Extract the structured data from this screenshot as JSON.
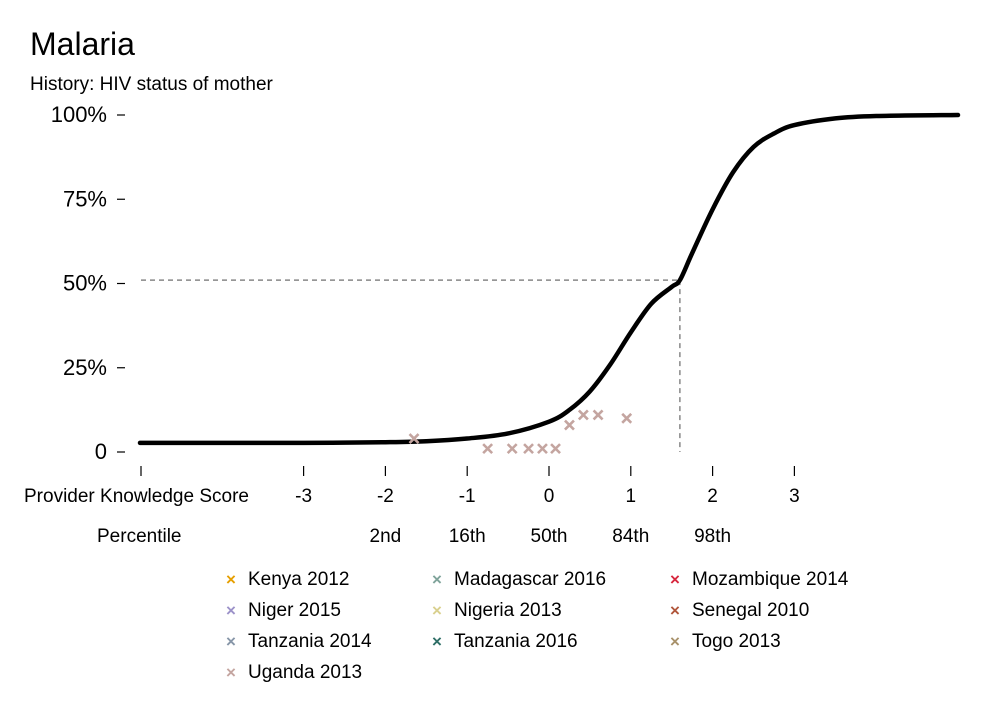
{
  "title": "Malaria",
  "subtitle": "History: HIV status of mother",
  "chart_data": {
    "type": "line",
    "title": "Malaria",
    "subtitle": "History: HIV status of mother",
    "xlabel": "Provider Knowledge Score",
    "x_tick_labels": [
      "-3",
      "-2",
      "-1",
      "0",
      "1",
      "2",
      "3"
    ],
    "x_ticks": [
      -3,
      -2,
      -1,
      0,
      1,
      2,
      3
    ],
    "xlim": [
      -5,
      5
    ],
    "percentile_label": "Percentile",
    "percentiles": [
      {
        "x": -2,
        "label": "2nd"
      },
      {
        "x": -1,
        "label": "16th"
      },
      {
        "x": 0,
        "label": "50th"
      },
      {
        "x": 1,
        "label": "84th"
      },
      {
        "x": 2,
        "label": "98th"
      }
    ],
    "y_ticks": [
      0,
      25,
      50,
      75,
      100
    ],
    "y_tick_labels": [
      "0",
      "25%",
      "50%",
      "75%",
      "100%"
    ],
    "ylim": [
      0,
      100
    ],
    "curve": {
      "x": [
        -5,
        -4,
        -3,
        -2.5,
        -2,
        -1.5,
        -1,
        -0.5,
        0,
        0.25,
        0.5,
        0.75,
        1,
        1.25,
        1.5,
        1.6,
        1.75,
        2,
        2.25,
        2.5,
        2.75,
        3,
        3.5,
        4,
        5
      ],
      "y": [
        2.7,
        2.7,
        2.7,
        2.8,
        2.9,
        3.2,
        4.0,
        5.5,
        9.0,
        12.5,
        18.0,
        26.0,
        35.5,
        44.0,
        49.0,
        51.0,
        59.0,
        72.0,
        83.0,
        90.5,
        94.5,
        97.0,
        99.0,
        99.7,
        100.0
      ]
    },
    "reference": {
      "x": 1.6,
      "y": 51
    },
    "series": [
      {
        "name": "Kenya 2012",
        "color": "#E69F00",
        "points": []
      },
      {
        "name": "Madagascar 2016",
        "color": "#7FA39A",
        "points": []
      },
      {
        "name": "Mozambique 2014",
        "color": "#D7263D",
        "points": []
      },
      {
        "name": "Niger 2015",
        "color": "#9C92C9",
        "points": []
      },
      {
        "name": "Nigeria 2013",
        "color": "#D9D08E",
        "points": []
      },
      {
        "name": "Senegal 2010",
        "color": "#B0553A",
        "points": []
      },
      {
        "name": "Tanzania 2014",
        "color": "#8796A8",
        "points": []
      },
      {
        "name": "Tanzania 2016",
        "color": "#2E6E66",
        "points": []
      },
      {
        "name": "Togo 2013",
        "color": "#A8916A",
        "points": []
      },
      {
        "name": "Uganda 2013",
        "color": "#C4A5A0",
        "points": [
          [
            -1.65,
            4
          ],
          [
            -0.75,
            1
          ],
          [
            -0.45,
            1
          ],
          [
            -0.25,
            1
          ],
          [
            -0.08,
            1
          ],
          [
            0.08,
            1
          ],
          [
            0.25,
            8
          ],
          [
            0.42,
            11
          ],
          [
            0.6,
            11
          ],
          [
            0.95,
            10
          ]
        ]
      }
    ]
  }
}
